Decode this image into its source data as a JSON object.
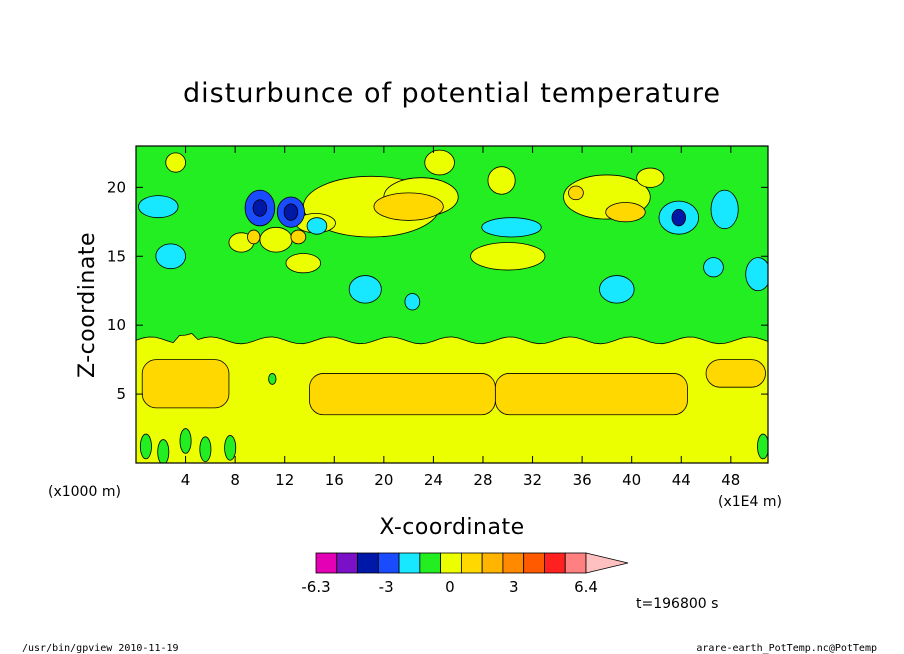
{
  "chart_data": {
    "type": "heatmap",
    "title": "disturbunce of potential temperature",
    "xlabel": "X-coordinate",
    "ylabel": "Z-coordinate",
    "x_unit": "(x1000 m)",
    "x_scale_note": "(x1E4 m)",
    "xlim": [
      0,
      51
    ],
    "ylim": [
      0,
      23
    ],
    "x_ticks": [
      4,
      8,
      12,
      16,
      20,
      24,
      28,
      32,
      36,
      40,
      44,
      48
    ],
    "y_ticks": [
      5,
      10,
      15,
      20
    ],
    "colorbar": {
      "bounds": [
        -6.3,
        -3,
        0,
        3,
        6.4
      ],
      "tick_labels": [
        "-6.3",
        "-3",
        "0",
        "3",
        "6.4"
      ],
      "colors": [
        "#e400b4",
        "#7a10c8",
        "#0018a8",
        "#1a4cff",
        "#18e8ff",
        "#22ee22",
        "#ecff00",
        "#ffd800",
        "#ffb400",
        "#ff8a00",
        "#ff5a00",
        "#ff2020",
        "#ff8080",
        "#ffc0c0"
      ]
    },
    "grid": false,
    "legend": "bottom",
    "regions": {
      "lower_layer": {
        "z_range": [
          0,
          9
        ],
        "value_band": "0 to 1 (yellow)"
      },
      "middle_layer": {
        "z_range": [
          9,
          23
        ],
        "value_band": "-0.5 to 0 (green)"
      },
      "warm_pools": [
        {
          "x": [
            0.5,
            7.5
          ],
          "z": [
            4,
            7.5
          ],
          "band": "1 to 2"
        },
        {
          "x": [
            14,
            29
          ],
          "z": [
            3.5,
            6.5
          ],
          "band": "1 to 2"
        },
        {
          "x": [
            29,
            44.5
          ],
          "z": [
            3.5,
            6.5
          ],
          "band": "1 to 2"
        },
        {
          "x": [
            46,
            50.8
          ],
          "z": [
            5.5,
            7.5
          ],
          "band": "1 to 2"
        }
      ],
      "cold_cells": [
        {
          "x": 10,
          "z": 18.5,
          "band": "-4.5 to -3"
        },
        {
          "x": 12.5,
          "z": 18.2,
          "band": "-4.5 to -3"
        },
        {
          "x": 43.8,
          "z": 17.8,
          "band": "-4.5 to -3"
        }
      ]
    }
  },
  "labels": {
    "time": "t=196800 s",
    "footer_left": "/usr/bin/gpview  2010-11-19",
    "footer_right": "arare-earth_PotTemp.nc@PotTemp"
  }
}
